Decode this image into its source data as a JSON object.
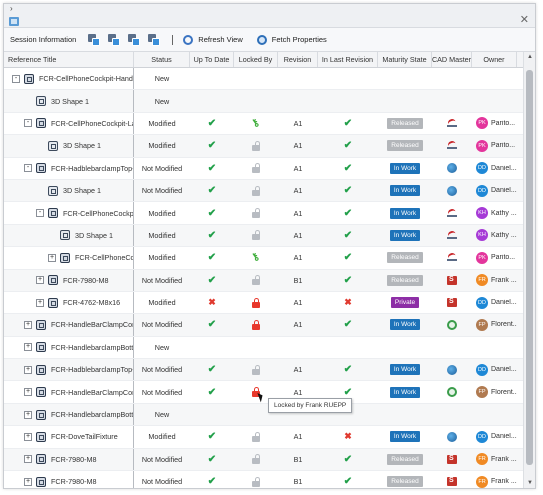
{
  "window": {
    "close_glyph": "✕",
    "chevron_glyph": "›"
  },
  "toolbar": {
    "session_label": "Session Information",
    "separator_text": "I",
    "refresh_label": "Refresh View",
    "fetch_label": "Fetch Properties"
  },
  "columns": {
    "title": "Reference Title",
    "status": "Status",
    "up_to_date": "Up To Date",
    "locked_by": "Locked By",
    "revision": "Revision",
    "in_last_revision": "In Last Revision",
    "maturity": "Maturity State",
    "cad_master": "CAD Master",
    "owner": "Owner"
  },
  "colors": {
    "released": "#b3b6ba",
    "in_work": "#1e73b9",
    "private": "#8d2ea6",
    "check": "#22a04a",
    "cross": "#e03a2f",
    "owner_pk": "#e3359c",
    "owner_dd": "#1e88d6",
    "owner_kh": "#a63ad6",
    "owner_fr": "#f08a24",
    "owner_fp": "#b07a50"
  },
  "rows": [
    {
      "indent": 0,
      "expander": "-",
      "icon": "assy-icon",
      "title": "FCR-CellPhoneCockpit-Handlebar",
      "status": "New",
      "up_to_date": "",
      "locked": "",
      "revision": "",
      "in_last": "",
      "maturity": "",
      "cad": "",
      "owner_initials": "",
      "owner_name": "",
      "owner_color": ""
    },
    {
      "indent": 1,
      "expander": "",
      "icon": "part-icon",
      "title": "3D Shape 1",
      "status": "New",
      "up_to_date": "",
      "locked": "",
      "revision": "",
      "in_last": "",
      "maturity": "",
      "cad": "",
      "owner_initials": "",
      "owner_name": "",
      "owner_color": ""
    },
    {
      "indent": 1,
      "expander": "-",
      "icon": "assy-icon",
      "title": "FCR-CellPhoneCockpit-Layout",
      "status": "Modified",
      "up_to_date": "check",
      "locked": "key",
      "revision": "A1",
      "in_last": "check",
      "maturity": "Released",
      "cad": "catia",
      "owner_initials": "PK",
      "owner_name": "Parito...",
      "owner_color": "#e3359c"
    },
    {
      "indent": 2,
      "expander": "",
      "icon": "part-icon",
      "title": "3D Shape 1",
      "status": "Modified",
      "up_to_date": "check",
      "locked": "open",
      "revision": "A1",
      "in_last": "check",
      "maturity": "Released",
      "cad": "catia",
      "owner_initials": "PK",
      "owner_name": "Parito...",
      "owner_color": "#e3359c"
    },
    {
      "indent": 1,
      "expander": "-",
      "icon": "assy-icon",
      "title": "FCR-HadblebarclampTop-Assembly",
      "status": "Not Modified",
      "up_to_date": "check",
      "locked": "open",
      "revision": "A1",
      "in_last": "check",
      "maturity": "In Work",
      "cad": "globe",
      "owner_initials": "DD",
      "owner_name": "Daniel...",
      "owner_color": "#1e88d6"
    },
    {
      "indent": 2,
      "expander": "",
      "icon": "part-icon",
      "title": "3D Shape 1",
      "status": "Not Modified",
      "up_to_date": "check",
      "locked": "open",
      "revision": "A1",
      "in_last": "check",
      "maturity": "In Work",
      "cad": "globe",
      "owner_initials": "DD",
      "owner_name": "Daniel...",
      "owner_color": "#1e88d6"
    },
    {
      "indent": 2,
      "expander": "-",
      "icon": "assy-icon",
      "title": "FCR-CellPhoneCockpit",
      "status": "Modified",
      "up_to_date": "check",
      "locked": "open",
      "revision": "A1",
      "in_last": "check",
      "maturity": "In Work",
      "cad": "catia",
      "owner_initials": "KH",
      "owner_name": "Kathy ...",
      "owner_color": "#a63ad6"
    },
    {
      "indent": 3,
      "expander": "",
      "icon": "part-icon",
      "title": "3D Shape 1",
      "status": "Modified",
      "up_to_date": "check",
      "locked": "open",
      "revision": "A1",
      "in_last": "check",
      "maturity": "In Work",
      "cad": "catia",
      "owner_initials": "KH",
      "owner_name": "Kathy ...",
      "owner_color": "#a63ad6"
    },
    {
      "indent": 3,
      "expander": "+",
      "icon": "assy-icon",
      "title": "FCR-CellPhoneCockpit",
      "status": "Modified",
      "up_to_date": "check",
      "locked": "key",
      "revision": "A1",
      "in_last": "check",
      "maturity": "Released",
      "cad": "catia",
      "owner_initials": "PK",
      "owner_name": "Parito...",
      "owner_color": "#e3359c"
    },
    {
      "indent": 2,
      "expander": "+",
      "icon": "assy-icon",
      "title": "FCR-7980-M8",
      "status": "Not Modified",
      "up_to_date": "check",
      "locked": "open",
      "revision": "B1",
      "in_last": "check",
      "maturity": "Released",
      "cad": "sw",
      "owner_initials": "FR",
      "owner_name": "Frank ...",
      "owner_color": "#f08a24"
    },
    {
      "indent": 2,
      "expander": "+",
      "icon": "assy-icon",
      "title": "FCR-4762-M8x16",
      "status": "Modified",
      "up_to_date": "cross",
      "locked": "red",
      "revision": "A1",
      "in_last": "cross",
      "maturity": "Private",
      "cad": "sw",
      "owner_initials": "DD",
      "owner_name": "Daniel...",
      "owner_color": "#1e88d6"
    },
    {
      "indent": 1,
      "expander": "+",
      "icon": "assy-icon",
      "title": "FCR-HandleBarClampConnector",
      "status": "Not Modified",
      "up_to_date": "check",
      "locked": "red",
      "revision": "A1",
      "in_last": "check",
      "maturity": "In Work",
      "cad": "ptc",
      "owner_initials": "FP",
      "owner_name": "Florent...",
      "owner_color": "#b07a50"
    },
    {
      "indent": 1,
      "expander": "+",
      "icon": "assy-icon",
      "title": "FCR-HandlebarclampBottom",
      "status": "New",
      "up_to_date": "",
      "locked": "",
      "revision": "",
      "in_last": "",
      "maturity": "",
      "cad": "",
      "owner_initials": "",
      "owner_name": "",
      "owner_color": ""
    },
    {
      "indent": 1,
      "expander": "+",
      "icon": "assy-icon",
      "title": "FCR-HadblebarclampTop-Assembly",
      "status": "Not Modified",
      "up_to_date": "check",
      "locked": "open",
      "revision": "A1",
      "in_last": "check",
      "maturity": "In Work",
      "cad": "globe",
      "owner_initials": "DD",
      "owner_name": "Daniel...",
      "owner_color": "#1e88d6"
    },
    {
      "indent": 1,
      "expander": "+",
      "icon": "assy-icon",
      "title": "FCR-HandleBarClampConnector",
      "status": "Not Modified",
      "up_to_date": "check",
      "locked": "red",
      "revision": "A1",
      "in_last": "check",
      "maturity": "In Work",
      "cad": "ptc",
      "owner_initials": "FP",
      "owner_name": "Florent...",
      "owner_color": "#b07a50"
    },
    {
      "indent": 1,
      "expander": "+",
      "icon": "assy-icon",
      "title": "FCR-HandlebarclampBottom",
      "status": "New",
      "up_to_date": "",
      "locked": "",
      "revision": "",
      "in_last": "",
      "maturity": "",
      "cad": "",
      "owner_initials": "",
      "owner_name": "",
      "owner_color": ""
    },
    {
      "indent": 1,
      "expander": "+",
      "icon": "assy-icon",
      "title": "FCR-DoveTailFixture",
      "status": "Modified",
      "up_to_date": "check",
      "locked": "open",
      "revision": "A1",
      "in_last": "cross",
      "maturity": "In Work",
      "cad": "globe",
      "owner_initials": "DD",
      "owner_name": "Daniel...",
      "owner_color": "#1e88d6"
    },
    {
      "indent": 1,
      "expander": "+",
      "icon": "assy-icon",
      "title": "FCR-7980-M8",
      "status": "Not Modified",
      "up_to_date": "check",
      "locked": "open",
      "revision": "B1",
      "in_last": "check",
      "maturity": "Released",
      "cad": "sw",
      "owner_initials": "FR",
      "owner_name": "Frank ...",
      "owner_color": "#f08a24"
    },
    {
      "indent": 1,
      "expander": "+",
      "icon": "assy-icon",
      "title": "FCR-7980-M8",
      "status": "Not Modified",
      "up_to_date": "check",
      "locked": "open",
      "revision": "B1",
      "in_last": "check",
      "maturity": "Released",
      "cad": "sw",
      "owner_initials": "FR",
      "owner_name": "Frank ...",
      "owner_color": "#f08a24"
    }
  ],
  "tooltip": {
    "text": "Locked by Frank RUEPP"
  }
}
